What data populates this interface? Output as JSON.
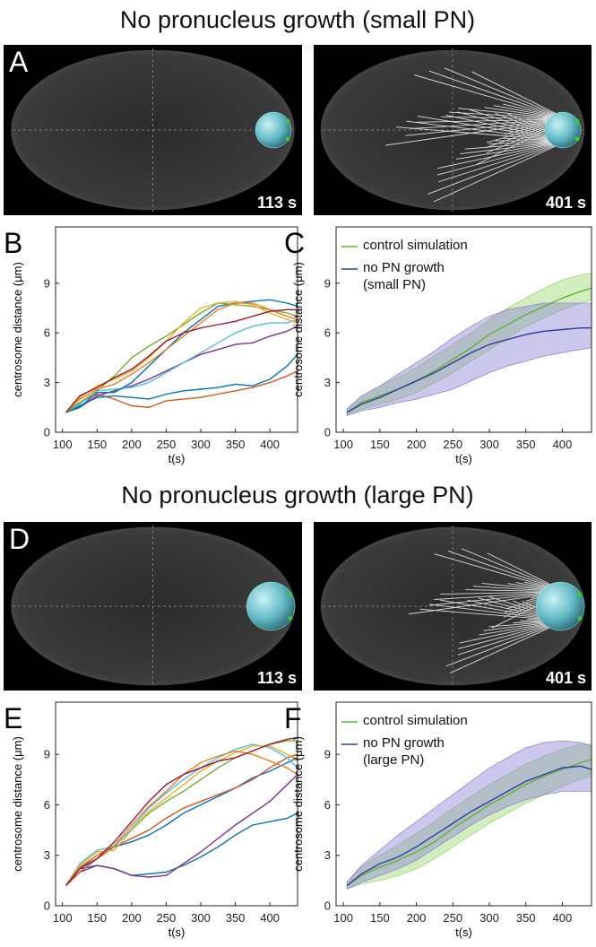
{
  "figure": {
    "sections": [
      {
        "title": "No pronucleus growth (small PN)",
        "panel": "A",
        "times": [
          "113 s",
          "401 s"
        ]
      },
      {
        "title": "No pronucleus growth (large PN)",
        "panel": "D",
        "times": [
          "113 s",
          "401 s"
        ]
      }
    ]
  },
  "chart_data": [
    {
      "type": "line",
      "panel": "B",
      "xlabel": "t(s)",
      "ylabel": "centrosome distance (μm)",
      "xlim": [
        90,
        440
      ],
      "ylim": [
        0,
        12.4
      ],
      "xticks": [
        100,
        150,
        200,
        250,
        300,
        350,
        400
      ],
      "yticks": [
        0,
        3,
        6,
        9
      ],
      "x": [
        105,
        125,
        150,
        175,
        200,
        225,
        250,
        275,
        300,
        325,
        350,
        375,
        400,
        425,
        440
      ],
      "series": [
        {
          "color": "#d95319",
          "values": [
            1.2,
            1.8,
            2.3,
            2.0,
            1.6,
            1.5,
            1.9,
            2.0,
            2.1,
            2.3,
            2.5,
            2.7,
            3.0,
            3.4,
            3.7
          ]
        },
        {
          "color": "#0072bd",
          "values": [
            1.2,
            1.6,
            2.1,
            2.2,
            2.1,
            2.0,
            2.3,
            2.5,
            2.6,
            2.7,
            2.9,
            2.8,
            3.2,
            4.0,
            4.7
          ]
        },
        {
          "color": "#7e2f8e",
          "values": [
            1.2,
            1.5,
            2.2,
            2.5,
            2.8,
            3.2,
            3.7,
            4.2,
            4.7,
            5.0,
            5.3,
            5.4,
            5.8,
            6.1,
            6.4
          ]
        },
        {
          "color": "#4dbeee",
          "values": [
            1.2,
            1.7,
            2.5,
            2.6,
            2.7,
            3.0,
            3.6,
            4.2,
            4.8,
            5.4,
            6.0,
            6.4,
            6.6,
            6.6,
            6.8
          ]
        },
        {
          "color": "#0072bd",
          "values": [
            1.2,
            1.5,
            2.4,
            2.4,
            3.0,
            4.0,
            5.0,
            6.0,
            6.8,
            7.6,
            7.8,
            7.9,
            8.0,
            7.8,
            7.6
          ]
        },
        {
          "color": "#77ac30",
          "values": [
            1.2,
            1.8,
            2.5,
            3.4,
            4.5,
            5.2,
            5.8,
            6.5,
            7.2,
            7.8,
            7.7,
            7.6,
            7.4,
            7.2,
            7.0
          ]
        },
        {
          "color": "#edb120",
          "values": [
            1.2,
            2.1,
            2.8,
            3.2,
            3.7,
            4.5,
            5.5,
            6.6,
            7.5,
            7.8,
            7.9,
            7.7,
            7.2,
            6.8,
            6.6
          ]
        },
        {
          "color": "#f08020",
          "values": [
            1.2,
            2.0,
            2.6,
            2.9,
            3.5,
            4.2,
            5.0,
            5.8,
            6.6,
            7.4,
            7.8,
            7.8,
            7.4,
            7.0,
            6.8
          ]
        },
        {
          "color": "#a2142f",
          "values": [
            1.2,
            2.2,
            2.7,
            3.3,
            3.8,
            4.6,
            5.5,
            6.0,
            6.3,
            6.5,
            6.7,
            7.0,
            7.3,
            7.4,
            7.4
          ]
        }
      ]
    },
    {
      "type": "line",
      "panel": "C",
      "xlabel": "t(s)",
      "ylabel": "centrosome distance (μm)",
      "legend": "upper left",
      "xlim": [
        90,
        440
      ],
      "ylim": [
        0,
        12.4
      ],
      "xticks": [
        100,
        150,
        200,
        250,
        300,
        350,
        400
      ],
      "yticks": [
        0,
        3,
        6,
        9
      ],
      "x": [
        105,
        125,
        150,
        175,
        200,
        225,
        250,
        275,
        300,
        325,
        350,
        375,
        400,
        425,
        440
      ],
      "series": [
        {
          "name": "control simulation",
          "color": "#5cb531",
          "band_color": "#9bd86e",
          "values": [
            1.2,
            1.8,
            2.2,
            2.6,
            3.1,
            3.7,
            4.4,
            5.1,
            5.9,
            6.5,
            7.1,
            7.6,
            8.1,
            8.5,
            8.7
          ],
          "lower": [
            1.1,
            1.4,
            1.7,
            2.0,
            2.4,
            3.0,
            3.6,
            4.3,
            5.0,
            5.7,
            6.4,
            6.9,
            7.4,
            7.8,
            8.0
          ],
          "upper": [
            1.4,
            2.2,
            2.8,
            3.3,
            3.9,
            4.6,
            5.3,
            6.0,
            6.8,
            7.5,
            8.1,
            8.7,
            9.2,
            9.5,
            9.6
          ]
        },
        {
          "name": "no PN growth (small PN)",
          "color": "#2c3e9c",
          "band_color": "#8f86d8",
          "values": [
            1.2,
            1.7,
            2.1,
            2.6,
            3.1,
            3.6,
            4.2,
            4.8,
            5.3,
            5.6,
            5.9,
            6.1,
            6.2,
            6.3,
            6.3
          ],
          "lower": [
            1.0,
            1.3,
            1.5,
            1.8,
            2.0,
            2.3,
            2.6,
            3.1,
            3.6,
            4.0,
            4.3,
            4.6,
            4.8,
            5.0,
            5.1
          ],
          "upper": [
            1.4,
            2.2,
            2.8,
            3.5,
            4.2,
            4.9,
            5.7,
            6.4,
            7.0,
            7.4,
            7.6,
            7.8,
            7.8,
            7.8,
            7.8
          ]
        }
      ]
    },
    {
      "type": "line",
      "panel": "E",
      "xlabel": "t(s)",
      "ylabel": "centrosome distance (μm)",
      "xlim": [
        90,
        440
      ],
      "ylim": [
        0,
        12.1
      ],
      "xticks": [
        100,
        150,
        200,
        250,
        300,
        350,
        400
      ],
      "yticks": [
        0,
        3,
        6,
        9
      ],
      "x": [
        105,
        125,
        150,
        175,
        200,
        225,
        250,
        275,
        300,
        325,
        350,
        375,
        400,
        425,
        440
      ],
      "series": [
        {
          "color": "#0072bd",
          "values": [
            1.2,
            2.2,
            2.4,
            2.2,
            1.8,
            1.9,
            2.0,
            2.4,
            2.9,
            3.5,
            4.2,
            4.8,
            5.0,
            5.2,
            5.5
          ]
        },
        {
          "color": "#7e2f8e",
          "values": [
            1.2,
            2.0,
            2.4,
            2.2,
            1.8,
            1.7,
            1.8,
            2.5,
            3.2,
            4.0,
            4.8,
            5.5,
            6.2,
            7.2,
            7.8
          ]
        },
        {
          "color": "#0072bd",
          "values": [
            1.2,
            2.2,
            3.0,
            3.5,
            3.8,
            4.2,
            4.8,
            5.5,
            6.0,
            6.5,
            7.0,
            7.6,
            8.0,
            8.5,
            8.8
          ]
        },
        {
          "color": "#d95319",
          "values": [
            1.2,
            2.0,
            2.8,
            3.5,
            4.0,
            4.5,
            5.2,
            5.8,
            6.2,
            6.6,
            7.0,
            7.5,
            8.2,
            8.8,
            9.0
          ]
        },
        {
          "color": "#77ac30",
          "values": [
            1.2,
            2.3,
            3.0,
            3.6,
            4.5,
            5.5,
            6.2,
            6.8,
            7.5,
            8.2,
            8.8,
            9.2,
            9.6,
            9.8,
            9.8
          ]
        },
        {
          "color": "#4dbeee",
          "values": [
            1.2,
            2.5,
            3.3,
            3.5,
            4.6,
            5.8,
            6.7,
            7.5,
            8.2,
            8.8,
            9.3,
            9.6,
            9.4,
            8.8,
            8.2
          ]
        },
        {
          "color": "#edb120",
          "values": [
            1.2,
            2.4,
            3.2,
            3.3,
            4.5,
            5.6,
            6.4,
            7.2,
            8.0,
            8.6,
            9.1,
            9.5,
            9.5,
            9.0,
            8.6
          ]
        },
        {
          "color": "#f08020",
          "values": [
            1.2,
            2.3,
            3.0,
            3.6,
            4.8,
            5.9,
            6.8,
            7.8,
            8.5,
            8.9,
            9.2,
            9.0,
            8.6,
            8.2,
            7.8
          ]
        },
        {
          "color": "#a2142f",
          "values": [
            1.2,
            2.2,
            2.8,
            3.8,
            5.0,
            6.2,
            7.2,
            7.8,
            8.2,
            8.6,
            8.8,
            9.2,
            9.6,
            9.9,
            10.0
          ]
        }
      ]
    },
    {
      "type": "line",
      "panel": "F",
      "xlabel": "t(s)",
      "ylabel": "centrosome distance (μm)",
      "legend": "upper left",
      "xlim": [
        90,
        440
      ],
      "ylim": [
        0,
        12.1
      ],
      "xticks": [
        100,
        150,
        200,
        250,
        300,
        350,
        400
      ],
      "yticks": [
        0,
        3,
        6,
        9
      ],
      "x": [
        105,
        125,
        150,
        175,
        200,
        225,
        250,
        275,
        300,
        325,
        350,
        375,
        400,
        425,
        440
      ],
      "series": [
        {
          "name": "control simulation",
          "color": "#5cb531",
          "band_color": "#9bd86e",
          "values": [
            1.2,
            1.8,
            2.3,
            2.7,
            3.2,
            3.8,
            4.6,
            5.3,
            6.0,
            6.6,
            7.2,
            7.7,
            8.1,
            8.5,
            8.7
          ],
          "lower": [
            1.0,
            1.3,
            1.5,
            1.8,
            2.2,
            2.8,
            3.5,
            4.2,
            4.9,
            5.5,
            6.1,
            6.6,
            7.1,
            7.5,
            7.7
          ],
          "upper": [
            1.4,
            2.3,
            3.0,
            3.6,
            4.3,
            5.0,
            5.8,
            6.5,
            7.2,
            7.8,
            8.4,
            8.9,
            9.3,
            9.6,
            9.6
          ]
        },
        {
          "name": "no PN growth (large PN)",
          "color": "#2c3e9c",
          "band_color": "#8f86d8",
          "values": [
            1.2,
            1.9,
            2.5,
            2.9,
            3.5,
            4.2,
            4.9,
            5.6,
            6.2,
            6.8,
            7.4,
            7.8,
            8.2,
            8.3,
            8.1
          ],
          "lower": [
            1.0,
            1.4,
            1.8,
            2.2,
            2.7,
            3.4,
            4.1,
            4.8,
            5.4,
            5.9,
            6.3,
            6.6,
            6.8,
            6.8,
            6.8
          ],
          "upper": [
            1.4,
            2.4,
            3.3,
            4.2,
            5.0,
            5.8,
            6.6,
            7.4,
            8.2,
            8.8,
            9.4,
            9.7,
            9.8,
            9.7,
            9.5
          ]
        }
      ]
    }
  ]
}
